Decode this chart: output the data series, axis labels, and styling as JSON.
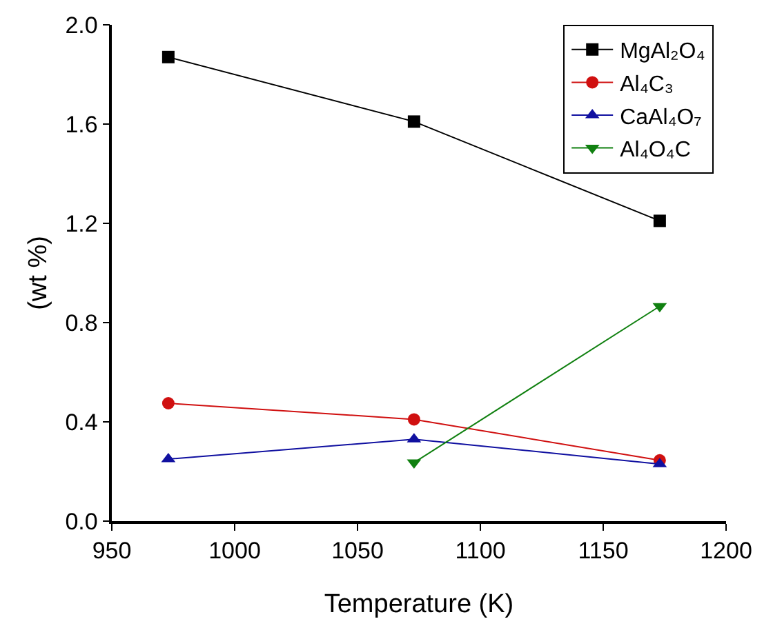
{
  "chart_data": {
    "type": "line",
    "xlabel": "Temperature (K)",
    "ylabel": "(wt %)",
    "x": [
      973,
      1073,
      1173
    ],
    "series": [
      {
        "name": "MgAl₂O₄",
        "color": "#000000",
        "marker": "square",
        "values": [
          1.87,
          1.61,
          1.21
        ]
      },
      {
        "name": "Al₄C₃",
        "color": "#d01010",
        "marker": "circle",
        "values": [
          0.475,
          0.41,
          0.245
        ]
      },
      {
        "name": "CaAl₄O₇",
        "color": "#1010a0",
        "marker": "triangle",
        "values": [
          0.25,
          0.33,
          0.23
        ]
      },
      {
        "name": "Al₄O₄C",
        "color": "#108010",
        "marker": "triangle-down",
        "values": [
          null,
          0.236,
          0.866
        ]
      }
    ],
    "xlim": [
      950,
      1200
    ],
    "xticks": [
      950,
      1000,
      1050,
      1100,
      1150,
      1200
    ],
    "ylim": [
      0,
      2.0
    ],
    "yticks": [
      {
        "value": 0,
        "label": "0.0"
      },
      {
        "value": 0.4,
        "label": "0.4"
      },
      {
        "value": 0.8,
        "label": "0.8"
      },
      {
        "value": 1.2,
        "label": "1.2"
      },
      {
        "value": 1.6,
        "label": "1.6"
      },
      {
        "value": 2.0,
        "label": "2.0"
      }
    ],
    "grid": false,
    "legend": "top right",
    "line_style": "solid"
  }
}
